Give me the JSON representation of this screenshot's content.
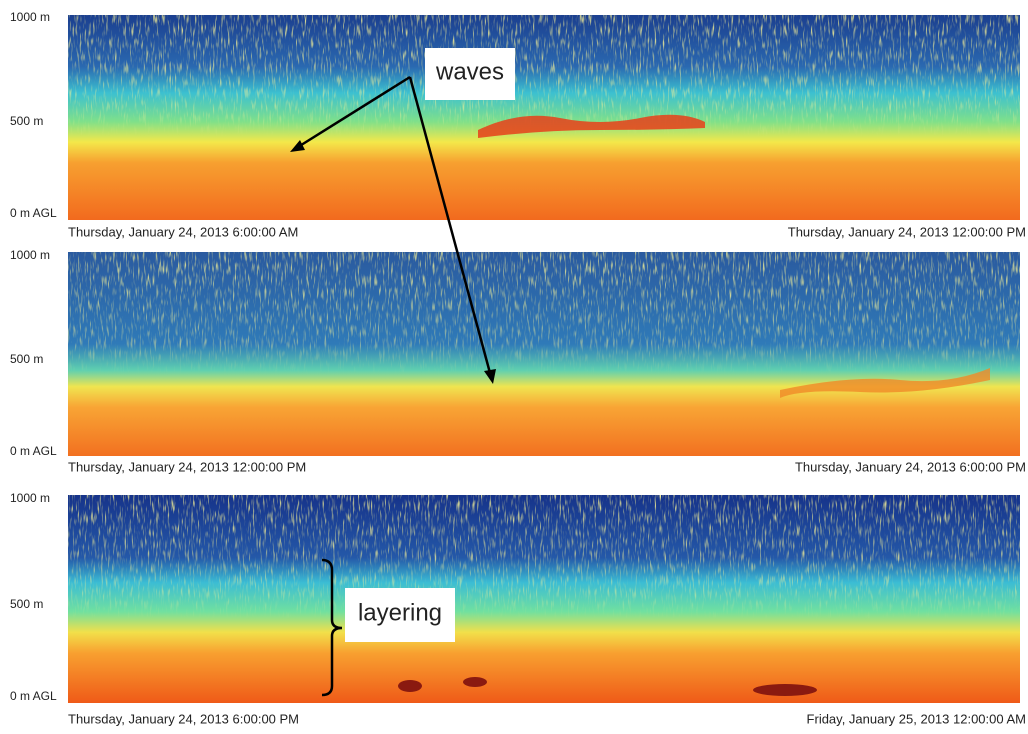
{
  "panels": [
    {
      "y_labels": [
        "1000 m",
        "500 m",
        "0 m AGL"
      ],
      "start_time": "Thursday, January 24, 2013 6:00:00 AM",
      "end_time": "Thursday, January 24, 2013 12:00:00 PM"
    },
    {
      "y_labels": [
        "1000 m",
        "500 m",
        "0 m AGL"
      ],
      "start_time": "Thursday, January 24, 2013 12:00:00 PM",
      "end_time": "Thursday, January 24, 2013 6:00:00 PM"
    },
    {
      "y_labels": [
        "1000 m",
        "500 m",
        "0 m AGL"
      ],
      "start_time": "Thursday, January 24, 2013 6:00:00 PM",
      "end_time": "Friday, January 25, 2013 12:00:00 AM"
    }
  ],
  "annotations": {
    "waves": "waves",
    "layering": "layering"
  }
}
